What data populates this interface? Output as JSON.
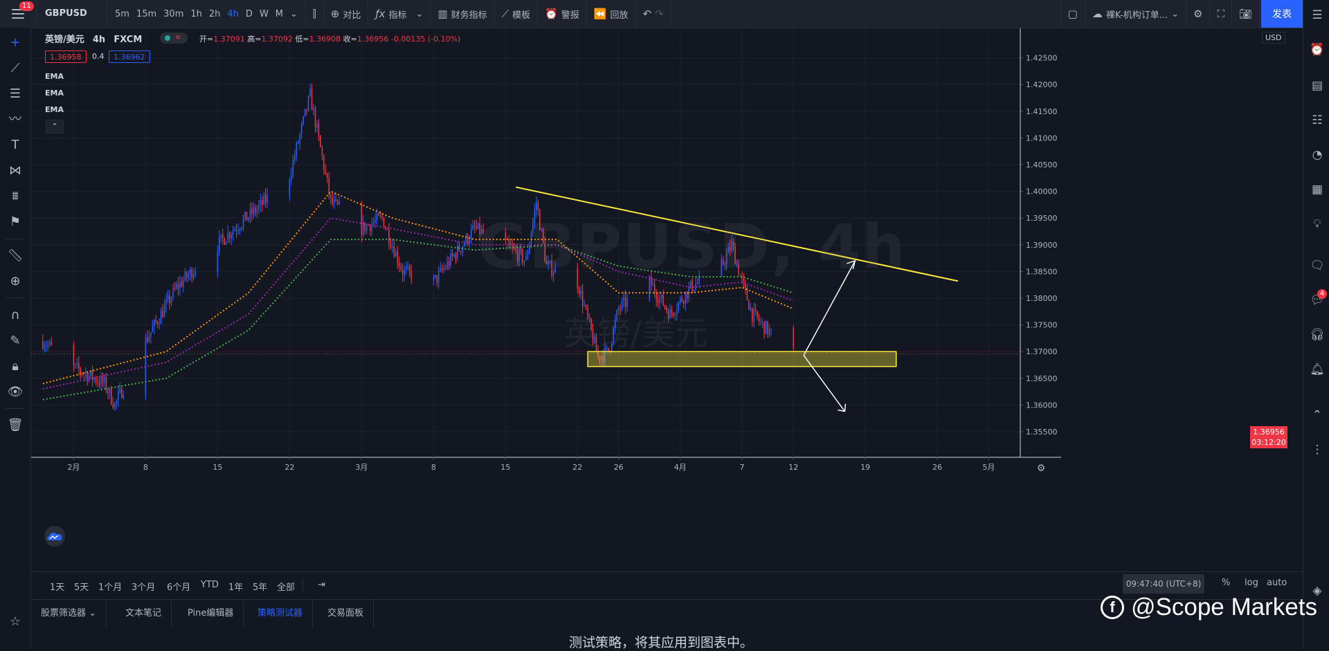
{
  "topbar": {
    "notification_count": "11",
    "symbol": "GBPUSD",
    "intervals": [
      "5m",
      "15m",
      "30m",
      "1h",
      "2h",
      "4h",
      "D",
      "W",
      "M"
    ],
    "active_interval": "4h",
    "compare": "对比",
    "indicators": "指标",
    "financials": "财务指标",
    "templates": "模板",
    "alert": "警报",
    "replay": "回放",
    "layout_name": "裸K-机构订单...",
    "publish": "发表"
  },
  "legend": {
    "title": "英镑/美元",
    "interval": "4h",
    "source": "FXCM",
    "open_label": "开=",
    "open": "1.37091",
    "high_label": "高=",
    "high": "1.37092",
    "low_label": "低=",
    "low": "1.36908",
    "close_label": "收=",
    "close": "1.36956",
    "change": "-0.00135 (-0.10%)",
    "bid": "1.36958",
    "spread": "0.4",
    "ask": "1.36962",
    "studies": [
      "EMA",
      "EMA",
      "EMA"
    ]
  },
  "watermark": {
    "symbol_line": "GBPUSD, 4h",
    "name_line": "英镑/美元"
  },
  "price_axis": {
    "currency": "USD",
    "current_price": "1.36956",
    "countdown": "03:12:20"
  },
  "chart_data": {
    "type": "candlestick",
    "title": "英镑/美元 4h FXCM",
    "y_ticks": [
      1.425,
      1.42,
      1.415,
      1.41,
      1.405,
      1.4,
      1.395,
      1.39,
      1.385,
      1.38,
      1.375,
      1.37,
      1.365,
      1.36,
      1.355
    ],
    "y_tick_labels": [
      "1.42500",
      "1.42000",
      "1.41500",
      "1.41000",
      "1.40500",
      "1.40000",
      "1.39500",
      "1.39000",
      "1.38500",
      "1.38000",
      "1.37500",
      "1.37000",
      "1.36500",
      "1.36000",
      "1.35500"
    ],
    "ylim": [
      1.3515,
      1.43
    ],
    "x_ticks": [
      "2月",
      "8",
      "15",
      "22",
      "3月",
      "8",
      "15",
      "22",
      "26",
      "4月",
      "7",
      "12",
      "19",
      "26",
      "5月"
    ],
    "approx_price_path": [
      {
        "date": "2021-01-29",
        "price": 1.372
      },
      {
        "date": "2021-02-01",
        "price": 1.367
      },
      {
        "date": "2021-02-04",
        "price": 1.364
      },
      {
        "date": "2021-02-05",
        "price": 1.36
      },
      {
        "date": "2021-02-08",
        "price": 1.372
      },
      {
        "date": "2021-02-11",
        "price": 1.382
      },
      {
        "date": "2021-02-16",
        "price": 1.392
      },
      {
        "date": "2021-02-19",
        "price": 1.397
      },
      {
        "date": "2021-02-22",
        "price": 1.403
      },
      {
        "date": "2021-02-24",
        "price": 1.418
      },
      {
        "date": "2021-02-26",
        "price": 1.398
      },
      {
        "date": "2021-03-01",
        "price": 1.393
      },
      {
        "date": "2021-03-03",
        "price": 1.395
      },
      {
        "date": "2021-03-05",
        "price": 1.385
      },
      {
        "date": "2021-03-08",
        "price": 1.383
      },
      {
        "date": "2021-03-10",
        "price": 1.388
      },
      {
        "date": "2021-03-12",
        "price": 1.393
      },
      {
        "date": "2021-03-15",
        "price": 1.39
      },
      {
        "date": "2021-03-17",
        "price": 1.387
      },
      {
        "date": "2021-03-18",
        "price": 1.398
      },
      {
        "date": "2021-03-19",
        "price": 1.386
      },
      {
        "date": "2021-03-22",
        "price": 1.383
      },
      {
        "date": "2021-03-24",
        "price": 1.369
      },
      {
        "date": "2021-03-25",
        "price": 1.37
      },
      {
        "date": "2021-03-26",
        "price": 1.378
      },
      {
        "date": "2021-03-29",
        "price": 1.383
      },
      {
        "date": "2021-03-31",
        "price": 1.377
      },
      {
        "date": "2021-04-02",
        "price": 1.382
      },
      {
        "date": "2021-04-05",
        "price": 1.386
      },
      {
        "date": "2021-04-06",
        "price": 1.39
      },
      {
        "date": "2021-04-07",
        "price": 1.383
      },
      {
        "date": "2021-04-08",
        "price": 1.377
      },
      {
        "date": "2021-04-09",
        "price": 1.375
      },
      {
        "date": "2021-04-10",
        "price": 1.373
      },
      {
        "date": "2021-04-12",
        "price": 1.36956
      }
    ],
    "ema_fast_path": [
      {
        "date": "2021-01-29",
        "price": 1.364
      },
      {
        "date": "2021-02-10",
        "price": 1.37
      },
      {
        "date": "2021-02-18",
        "price": 1.381
      },
      {
        "date": "2021-02-26",
        "price": 1.4
      },
      {
        "date": "2021-03-04",
        "price": 1.395
      },
      {
        "date": "2021-03-12",
        "price": 1.391
      },
      {
        "date": "2021-03-20",
        "price": 1.391
      },
      {
        "date": "2021-03-26",
        "price": 1.381
      },
      {
        "date": "2021-04-02",
        "price": 1.381
      },
      {
        "date": "2021-04-07",
        "price": 1.382
      },
      {
        "date": "2021-04-12",
        "price": 1.378
      }
    ],
    "ema_mid_path": [
      {
        "date": "2021-01-29",
        "price": 1.363
      },
      {
        "date": "2021-02-10",
        "price": 1.368
      },
      {
        "date": "2021-02-18",
        "price": 1.377
      },
      {
        "date": "2021-02-26",
        "price": 1.395
      },
      {
        "date": "2021-03-04",
        "price": 1.393
      },
      {
        "date": "2021-03-12",
        "price": 1.39
      },
      {
        "date": "2021-03-20",
        "price": 1.39
      },
      {
        "date": "2021-03-26",
        "price": 1.385
      },
      {
        "date": "2021-04-02",
        "price": 1.382
      },
      {
        "date": "2021-04-07",
        "price": 1.383
      },
      {
        "date": "2021-04-12",
        "price": 1.3795
      }
    ],
    "ema_slow_path": [
      {
        "date": "2021-01-29",
        "price": 1.361
      },
      {
        "date": "2021-02-10",
        "price": 1.365
      },
      {
        "date": "2021-02-18",
        "price": 1.374
      },
      {
        "date": "2021-02-26",
        "price": 1.391
      },
      {
        "date": "2021-03-04",
        "price": 1.391
      },
      {
        "date": "2021-03-12",
        "price": 1.389
      },
      {
        "date": "2021-03-20",
        "price": 1.39
      },
      {
        "date": "2021-03-26",
        "price": 1.386
      },
      {
        "date": "2021-04-02",
        "price": 1.384
      },
      {
        "date": "2021-04-07",
        "price": 1.384
      },
      {
        "date": "2021-04-12",
        "price": 1.381
      }
    ],
    "support_zone": {
      "low": 1.3672,
      "high": 1.37
    },
    "trendline": {
      "start": {
        "date": "2021-03-16",
        "price": 1.4008
      },
      "end": {
        "date": "2021-04-28",
        "price": 1.3832
      }
    },
    "grid": true,
    "colors": {
      "up": "#2962ff",
      "down": "#f23645",
      "ema_fast": "#ff9800",
      "ema_mid": "#9c27b0",
      "ema_slow": "#4caf50",
      "trend": "#ffeb3b",
      "zone": "#ffeb3b"
    }
  },
  "time_axis_dates": [
    "2021-02-01",
    "2021-02-08",
    "2021-02-15",
    "2021-02-22",
    "2021-03-01",
    "2021-03-08",
    "2021-03-15",
    "2021-03-22",
    "2021-03-26",
    "2021-04-01",
    "2021-04-07",
    "2021-04-12",
    "2021-04-19",
    "2021-04-26",
    "2021-05-01"
  ],
  "periods": [
    "1天",
    "5天",
    "1个月",
    "3个月",
    "6个月",
    "YTD",
    "1年",
    "5年",
    "全部"
  ],
  "clock": "09:47:40 (UTC+8)",
  "scale_options": [
    "%",
    "log",
    "auto"
  ],
  "bottom_tabs": [
    "股票筛选器",
    "文本笔记",
    "Pine编辑器",
    "策略测试器",
    "交易面板"
  ],
  "active_bottom_tab": "策略测试器",
  "strategy_hint": "测试策略，将其应用到图表中。",
  "brand": "@Scope Markets",
  "alerts_badge": "4"
}
